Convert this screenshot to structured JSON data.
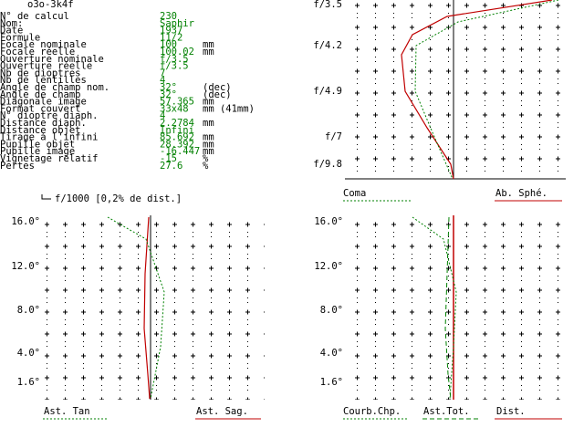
{
  "header": {
    "title": "o3o-3k4f"
  },
  "table": {
    "rows": [
      {
        "label": "N° de calcul",
        "value": "230"
      },
      {
        "label": "Nom:",
        "value": "Saphir"
      },
      {
        "label": "Date",
        "value": "1937"
      },
      {
        "label": "Formule",
        "value": "11/2"
      },
      {
        "label": "Focale nominale",
        "value": "100",
        "unit": "mm"
      },
      {
        "label": "Focale réelle",
        "value": "100.02",
        "unit": "mm"
      },
      {
        "label": "Ouverture nominale",
        "value": "f/3.5"
      },
      {
        "label": "Ouverture réelle",
        "value": "f/3.5"
      },
      {
        "label": "Nb de dioptres",
        "value": "7"
      },
      {
        "label": "Nb de lentilles",
        "value": "4"
      },
      {
        "label": "Angle de champ nom.",
        "value": "32°",
        "unit": "(dec)"
      },
      {
        "label": "Angle de champ",
        "value": "32°",
        "unit": "(dec)"
      },
      {
        "label": "Diagonale image",
        "value": "57.365",
        "unit": "mm"
      },
      {
        "label": "Format couvert",
        "value": "33x48",
        "unit": "mm (41mm)"
      },
      {
        "label": "N° dioptre diaph.",
        "value": "4"
      },
      {
        "label": "Distance diaph.",
        "value": "2.2784",
        "unit": "mm"
      },
      {
        "label": "Distance objet",
        "value": "Infini"
      },
      {
        "label": "Tirage à l'infini",
        "value": "85.692",
        "unit": "mm"
      },
      {
        "label": "Pupille objet",
        "value": "28.392",
        "unit": "mm"
      },
      {
        "label": "Pupille image",
        "value": "-16.447",
        "unit": "mm"
      },
      {
        "label": "Vignetage relatif",
        "value": "-15",
        "unit": "%"
      },
      {
        "label": "Pertes",
        "value": "27.6",
        "unit": "%"
      }
    ]
  },
  "aberration_plot": {
    "axis_labels": [
      "f/3.5",
      "f/4.2",
      "f/4.9",
      "f/7",
      "f/9.8"
    ],
    "legend": [
      "Coma",
      "Ab. Sphé."
    ]
  },
  "astigmatism_plot": {
    "scale_note": "f/1000 [0,2% de dist.]",
    "axis_labels": [
      "16.0°",
      "12.0°",
      "8.0°",
      "4.0°",
      "1.6°"
    ],
    "legend": [
      "Ast. Tan",
      "Ast. Sag."
    ]
  },
  "field_plot": {
    "axis_labels": [
      "16.0°",
      "12.0°",
      "8.0°",
      "4.0°",
      "1.6°"
    ],
    "legend": [
      "Courb.Chp.",
      "Ast.Tot.",
      "Dist."
    ]
  }
}
